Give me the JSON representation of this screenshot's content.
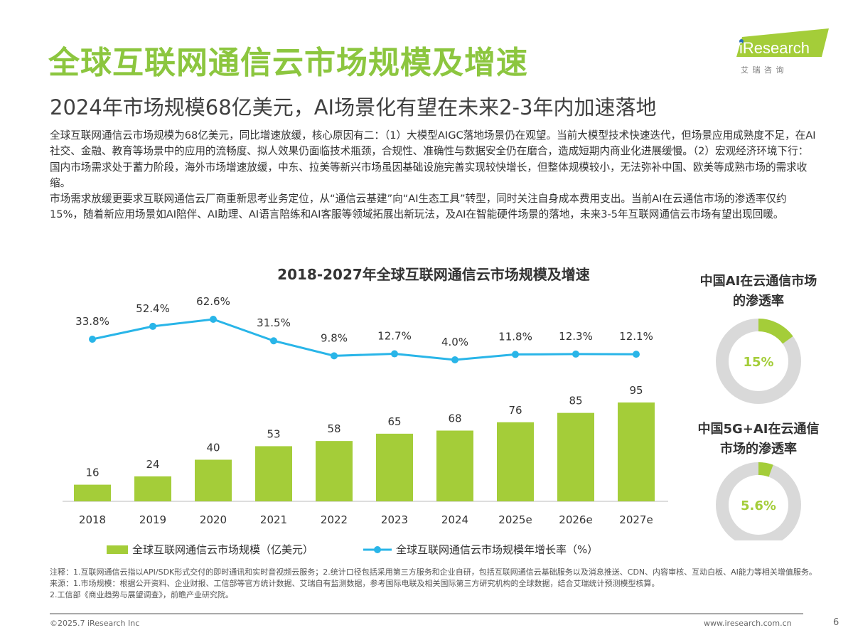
{
  "header": {
    "title": "全球互联网通信云市场规模及增速",
    "subtitle": "2024年市场规模68亿美元，AI场景化有望在未来2-3年内加速落地",
    "logo_text": "iResearch",
    "logo_sub": "艾 瑞 咨 询"
  },
  "body": [
    "全球互联网通信云市场规模为68亿美元，同比增速放缓，核心原因有二：（1）大模型AIGC落地场景仍在观望。当前大模型技术快速迭代，但场景应用成熟度不足，在AI社交、金融、教育等场景中的应用的流畅度、拟人效果仍面临技术瓶颈，合规性、准确性与数据安全仍在磨合，造成短期内商业化进展缓慢。（2）宏观经济环境下行：国内市场需求处于蓄力阶段，海外市场增速放缓，中东、拉美等新兴市场虽因基础设施完善实现较快增长，但整体规模较小，无法弥补中国、欧美等成熟市场的需求收缩。",
    "市场需求放缓更要求互联网通信云厂商重新思考业务定位，从“通信云基建”向“AI生态工具”转型，同时关注自身成本费用支出。当前AI在云通信市场的渗透率仅约15%，随着新应用场景如AI陪伴、AI助理、AI语言陪练和AI客服等领域拓展出新玩法，及AI在智能硬件场景的落地，未来3-5年互联网通信云市场有望出现回暖。"
  ],
  "colors": {
    "bar": "#a4cd39",
    "line": "#29b5e8",
    "title": "#8cc63f",
    "donut_bg": "#d9d9d9"
  },
  "chart_data": [
    {
      "type": "bar+line",
      "title": "2018-2027年全球互联网通信云市场规模及增速",
      "categories": [
        "2018",
        "2019",
        "2020",
        "2021",
        "2022",
        "2023",
        "2024",
        "2025e",
        "2026e",
        "2027e"
      ],
      "series": [
        {
          "name": "全球互联网通信云市场规模（亿美元）",
          "type": "bar",
          "values": [
            16,
            24,
            40,
            53,
            58,
            65,
            68,
            76,
            85,
            95
          ]
        },
        {
          "name": "全球互联网通信云市场规模年增长率（%）",
          "type": "line",
          "values": [
            33.8,
            52.4,
            62.6,
            31.5,
            9.8,
            12.7,
            4.0,
            11.8,
            12.3,
            12.1
          ],
          "labels": [
            "33.8%",
            "52.4%",
            "62.6%",
            "31.5%",
            "9.8%",
            "12.7%",
            "4.0%",
            "11.8%",
            "12.3%",
            "12.1%"
          ]
        }
      ],
      "legend": "bottom",
      "grid": false
    },
    {
      "type": "pie",
      "title": "中国AI在云通信市场的渗透率",
      "values": [
        15,
        85
      ],
      "label": "15%"
    },
    {
      "type": "pie",
      "title": "中国5G+AI在云通信市场的渗透率",
      "values": [
        5.6,
        94.4
      ],
      "label": "5.6%"
    }
  ],
  "notes": [
    "注释：1.互联网通信云指以API/SDK形式交付的即时通讯和实时音视频云服务；2.统计口径包括采用第三方服务和企业自研，包括互联网通信云基础服务以及消息推送、CDN、内容审核、互动白板、AI能力等相关增值服务。",
    "来源：1.市场规模：根据公开资料、企业财报、工信部等官方统计数据、艾瑞自有监测数据，参考国际电联及相关国际第三方研究机构的全球数据，结合艾瑞统计预测模型核算。",
    "2.工信部《商业趋势与展望调查》，前瞻产业研究院。"
  ],
  "footer": {
    "copyright": "©2025.7 iResearch Inc",
    "url": "www.iresearch.com.cn",
    "page": "6"
  }
}
